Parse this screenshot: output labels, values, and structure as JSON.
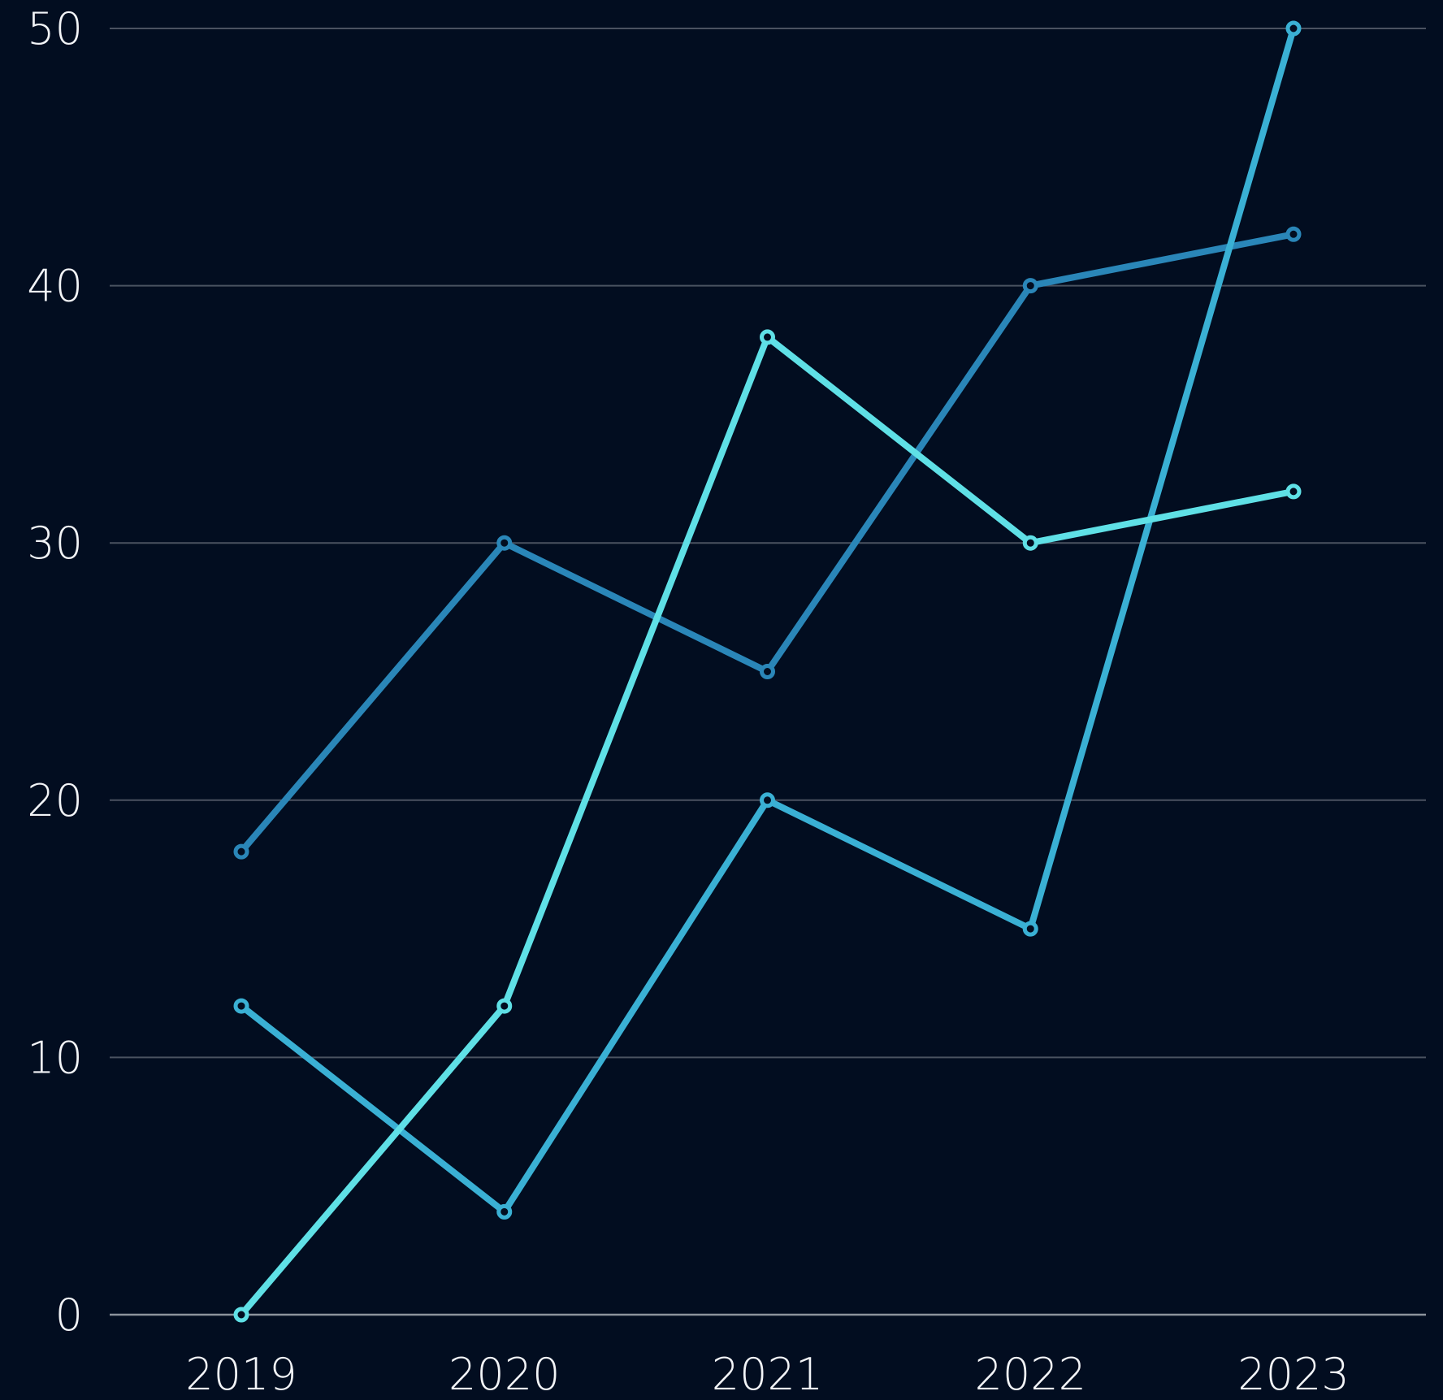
{
  "chart_data": {
    "type": "line",
    "title": "",
    "xlabel": "",
    "ylabel": "",
    "categories": [
      "2019",
      "2020",
      "2021",
      "2022",
      "2023"
    ],
    "ylim": [
      0,
      50
    ],
    "yticks": [
      0,
      10,
      20,
      30,
      40,
      50
    ],
    "ytick_labels": [
      "0",
      "10",
      "20",
      "30",
      "40",
      "50"
    ],
    "grid": "horizontal",
    "legend": "none",
    "series": [
      {
        "color": "#2a86b8",
        "values": [
          18,
          30,
          25,
          40,
          42
        ]
      },
      {
        "color": "#3ab0d4",
        "values": [
          12,
          4,
          20,
          15,
          50
        ]
      },
      {
        "color": "#5fe0e6",
        "values": [
          0,
          12,
          38,
          30,
          32
        ]
      }
    ]
  }
}
